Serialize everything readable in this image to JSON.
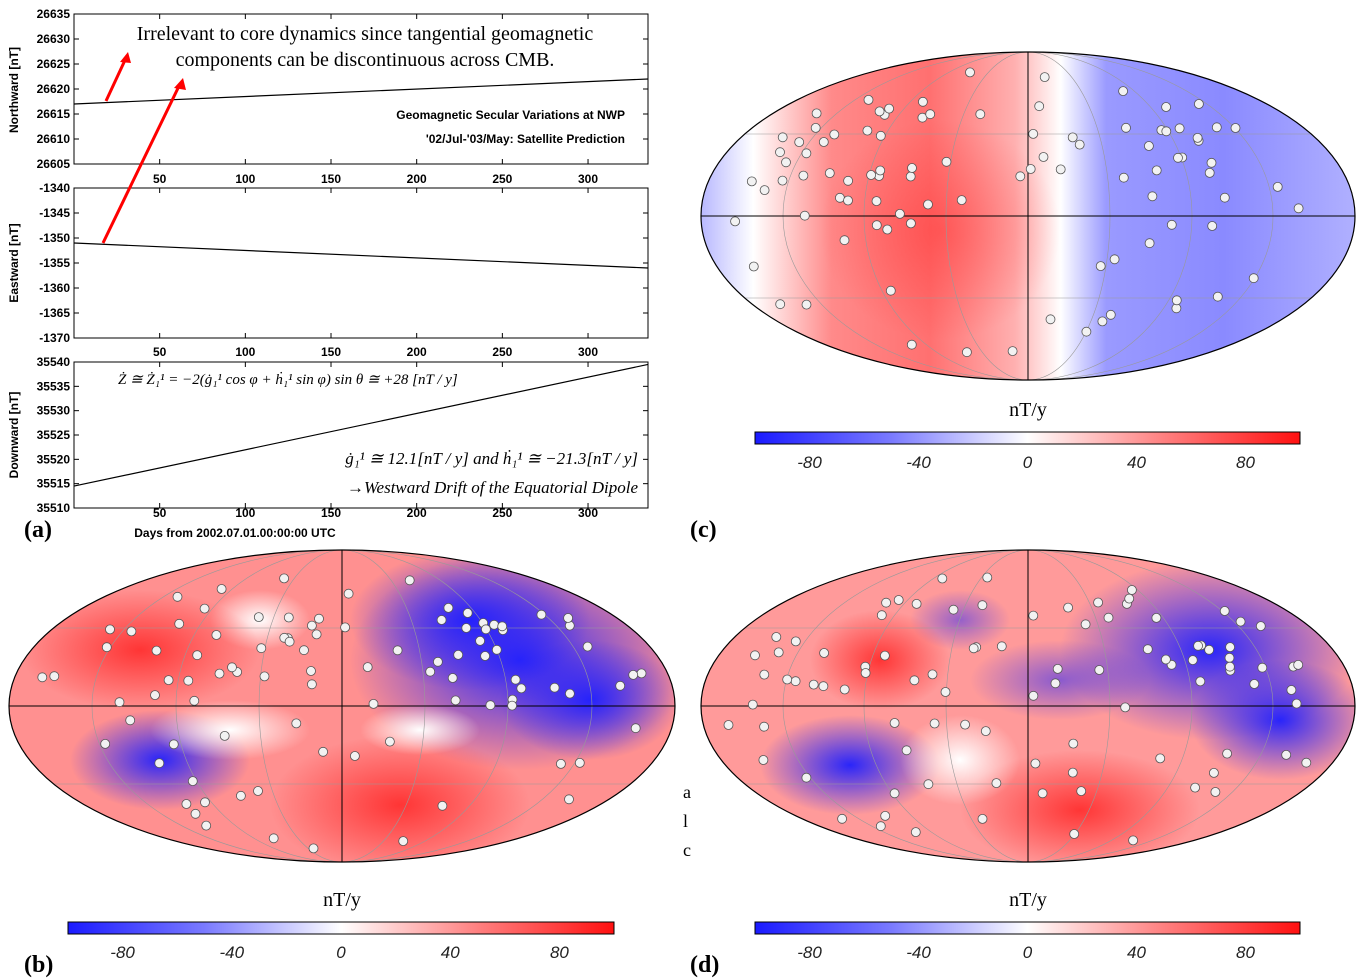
{
  "panel_labels": [
    "(a)",
    "(b)",
    "(c)",
    "(d)"
  ],
  "annotation_top": [
    "Irrelevant to core dynamics since tangential geomagnetic",
    "components can be discontinuous across CMB."
  ],
  "subtitle_lines": [
    "Geomagnetic Secular Variations at NWP",
    "'02/Jul-'03/May: Satellite Prediction"
  ],
  "formula_z": "Ż ≅ Ż₁¹ = −2(ġ₁¹ cos φ + ḣ₁¹ sin φ) sin θ ≅ +28    [nT / y]",
  "formula_g": "ġ₁¹ ≅ 12.1[nT / y]    and    ḣ₁¹ ≅ −21.3[nT / y]",
  "formula_drift": "→Westward  Drift  of  the  Equatorial  Dipole",
  "map_unit": "nT/y",
  "chart_data": [
    {
      "type": "line",
      "ylabel": "Northward [nT]",
      "xlim": [
        0,
        335
      ],
      "ylim": [
        26605,
        26635
      ],
      "yticks": [
        26605,
        26610,
        26615,
        26620,
        26625,
        26630,
        26635
      ],
      "xticks": [
        50,
        100,
        150,
        200,
        250,
        300
      ],
      "series": [
        {
          "x": [
            0,
            335
          ],
          "y": [
            26617.0,
            26622.0
          ]
        }
      ]
    },
    {
      "type": "line",
      "ylabel": "Eastward [nT]",
      "xlim": [
        0,
        335
      ],
      "ylim": [
        -1370,
        -1340
      ],
      "yticks": [
        -1370,
        -1365,
        -1360,
        -1355,
        -1350,
        -1345,
        -1340
      ],
      "xticks": [
        50,
        100,
        150,
        200,
        250,
        300
      ],
      "series": [
        {
          "x": [
            0,
            335
          ],
          "y": [
            -1351.0,
            -1356.0
          ]
        }
      ]
    },
    {
      "type": "line",
      "ylabel": "Downward [nT]",
      "xlabel": "Days from 2002.07.01.00:00:00 UTC",
      "xlim": [
        0,
        335
      ],
      "ylim": [
        35510,
        35540
      ],
      "yticks": [
        35510,
        35515,
        35520,
        35525,
        35530,
        35535,
        35540
      ],
      "xticks": [
        50,
        100,
        150,
        200,
        250,
        300
      ],
      "series": [
        {
          "x": [
            0,
            335
          ],
          "y": [
            35514.5,
            35539.5
          ]
        }
      ]
    },
    {
      "type": "heatmap",
      "panel": "(b)",
      "colorbar_label": "nT/y",
      "colorbar_ticks": [
        -80,
        -40,
        0,
        40,
        80
      ],
      "colorbar_range": [
        -100,
        100
      ]
    },
    {
      "type": "heatmap",
      "panel": "(c)",
      "colorbar_label": "nT/y",
      "colorbar_ticks": [
        -80,
        -40,
        0,
        40,
        80
      ],
      "colorbar_range": [
        -100,
        100
      ]
    },
    {
      "type": "heatmap",
      "panel": "(d)",
      "colorbar_label": "nT/y",
      "colorbar_ticks": [
        -80,
        -40,
        0,
        40,
        80
      ],
      "colorbar_range": [
        -100,
        100
      ]
    }
  ]
}
